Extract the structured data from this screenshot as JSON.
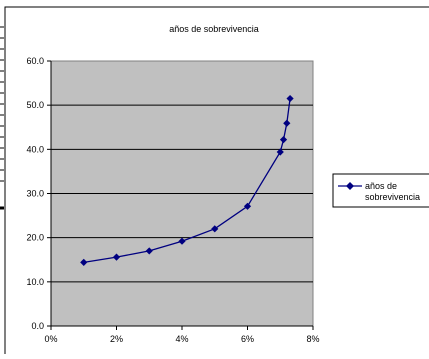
{
  "chart_data": {
    "type": "line",
    "title": "años de sobrevivencia",
    "xlabel": "",
    "ylabel": "",
    "xlim": [
      0,
      0.08
    ],
    "ylim": [
      0,
      60
    ],
    "x_ticks": [
      0,
      0.02,
      0.04,
      0.06,
      0.08
    ],
    "x_tick_labels": [
      "0%",
      "2%",
      "4%",
      "6%",
      "8%"
    ],
    "y_ticks": [
      0,
      10,
      20,
      30,
      40,
      50,
      60
    ],
    "y_tick_labels": [
      "0.0",
      "10.0",
      "20.0",
      "30.0",
      "40.0",
      "50.0",
      "60.0"
    ],
    "grid": "horizontal",
    "plot_background": "#c0c0c0",
    "legend_position": "right",
    "series": [
      {
        "name": "años de sobrevivencia",
        "color": "#000080",
        "marker": "diamond",
        "x": [
          0.01,
          0.02,
          0.03,
          0.04,
          0.05,
          0.06,
          0.07,
          0.071,
          0.072,
          0.073
        ],
        "y": [
          14.4,
          15.6,
          17.0,
          19.2,
          22.0,
          27.1,
          39.4,
          42.2,
          45.9,
          51.5
        ]
      }
    ]
  }
}
